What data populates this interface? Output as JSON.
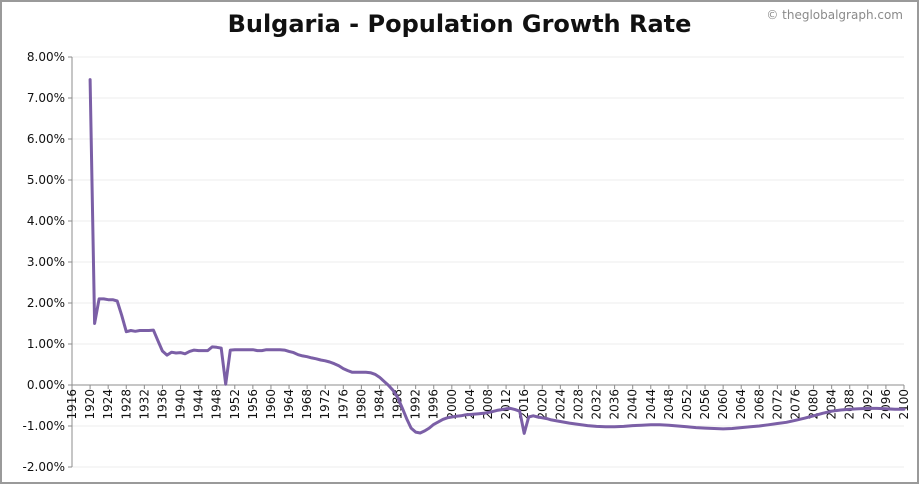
{
  "page": {
    "credit": "© theglobalgraph.com"
  },
  "chart_data": {
    "type": "line",
    "title": "Bulgaria - Population Growth Rate",
    "xlabel": "",
    "ylabel": "",
    "xlim": [
      1916,
      2100
    ],
    "ylim": [
      -0.02,
      0.08
    ],
    "y_ticks": [
      "-2.00%",
      "-1.00%",
      "0.00%",
      "1.00%",
      "2.00%",
      "3.00%",
      "4.00%",
      "5.00%",
      "6.00%",
      "7.00%",
      "8.00%"
    ],
    "x_ticks": [
      "1916",
      "1920",
      "1924",
      "1928",
      "1932",
      "1936",
      "1940",
      "1944",
      "1948",
      "1952",
      "1956",
      "1960",
      "1964",
      "1968",
      "1972",
      "1976",
      "1980",
      "1984",
      "1988",
      "1992",
      "1996",
      "2000",
      "2004",
      "2008",
      "2012",
      "2016",
      "2020",
      "2024",
      "2028",
      "2032",
      "2036",
      "2040",
      "2044",
      "2048",
      "2052",
      "2056",
      "2060",
      "2064",
      "2068",
      "2072",
      "2076",
      "2080",
      "2084",
      "2088",
      "2092",
      "2096",
      "2100"
    ],
    "grid": true,
    "line_color": "#7b5fa6",
    "series": [
      {
        "x": [
          1920,
          1921,
          1922,
          1923,
          1924,
          1925,
          1926,
          1927,
          1928,
          1929,
          1930,
          1931,
          1932,
          1933,
          1934,
          1935,
          1936,
          1937,
          1938,
          1939,
          1940,
          1941,
          1942,
          1943,
          1944,
          1945,
          1946,
          1947,
          1948,
          1949,
          1950,
          1951,
          1952,
          1953,
          1954,
          1955,
          1956,
          1957,
          1958,
          1959,
          1960,
          1961,
          1962,
          1963,
          1964,
          1965,
          1966,
          1967,
          1968,
          1969,
          1970,
          1971,
          1972,
          1973,
          1974,
          1975,
          1976,
          1977,
          1978,
          1979,
          1980,
          1981,
          1982,
          1983,
          1984,
          1985,
          1986,
          1987,
          1988,
          1989,
          1990,
          1991,
          1992,
          1993,
          1994,
          1995,
          1996,
          1997,
          1998,
          1999,
          2000,
          2001,
          2002,
          2003,
          2004,
          2005,
          2006,
          2007,
          2008,
          2009,
          2010,
          2011,
          2012,
          2013,
          2014,
          2015,
          2016,
          2017,
          2018,
          2019,
          2020,
          2021,
          2022,
          2024,
          2026,
          2028,
          2030,
          2032,
          2034,
          2036,
          2038,
          2040,
          2042,
          2044,
          2046,
          2048,
          2050,
          2052,
          2054,
          2056,
          2058,
          2060,
          2062,
          2064,
          2066,
          2068,
          2070,
          2072,
          2074,
          2076,
          2078,
          2080,
          2082,
          2084,
          2086,
          2088,
          2090,
          2092,
          2094,
          2096,
          2098,
          2100
        ],
        "values": [
          0.0745,
          0.015,
          0.021,
          0.021,
          0.0208,
          0.0208,
          0.0205,
          0.017,
          0.013,
          0.0133,
          0.0131,
          0.0133,
          0.0133,
          0.0133,
          0.0134,
          0.0108,
          0.0083,
          0.0073,
          0.008,
          0.0078,
          0.0079,
          0.0076,
          0.0082,
          0.0085,
          0.0084,
          0.0084,
          0.0084,
          0.0093,
          0.0092,
          0.009,
          0.0002,
          0.0085,
          0.0086,
          0.0086,
          0.0086,
          0.0086,
          0.0086,
          0.0084,
          0.0084,
          0.0086,
          0.0086,
          0.0086,
          0.0086,
          0.0085,
          0.0082,
          0.0079,
          0.0074,
          0.0071,
          0.0069,
          0.0066,
          0.0064,
          0.0061,
          0.0059,
          0.0056,
          0.0052,
          0.0047,
          0.004,
          0.0035,
          0.0031,
          0.0031,
          0.0031,
          0.0031,
          0.003,
          0.0026,
          0.0019,
          0.0009,
          -0.0001,
          -0.0013,
          -0.003,
          -0.0055,
          -0.0082,
          -0.0105,
          -0.0115,
          -0.0117,
          -0.0112,
          -0.0105,
          -0.0096,
          -0.009,
          -0.0084,
          -0.008,
          -0.0078,
          -0.0076,
          -0.0075,
          -0.0073,
          -0.0072,
          -0.0071,
          -0.007,
          -0.0069,
          -0.0067,
          -0.0065,
          -0.0062,
          -0.006,
          -0.0058,
          -0.0057,
          -0.006,
          -0.0064,
          -0.0118,
          -0.0078,
          -0.0075,
          -0.0078,
          -0.008,
          -0.0082,
          -0.0085,
          -0.0089,
          -0.0093,
          -0.0096,
          -0.0099,
          -0.0101,
          -0.0102,
          -0.0102,
          -0.0101,
          -0.0099,
          -0.0098,
          -0.0097,
          -0.0097,
          -0.0098,
          -0.01,
          -0.0102,
          -0.0104,
          -0.0105,
          -0.0106,
          -0.0107,
          -0.0106,
          -0.0104,
          -0.0102,
          -0.01,
          -0.0097,
          -0.0094,
          -0.0091,
          -0.0086,
          -0.0081,
          -0.0075,
          -0.0069,
          -0.0064,
          -0.0061,
          -0.0059,
          -0.0058,
          -0.0057,
          -0.0057,
          -0.0058,
          -0.0059,
          -0.0059
        ]
      }
    ]
  }
}
